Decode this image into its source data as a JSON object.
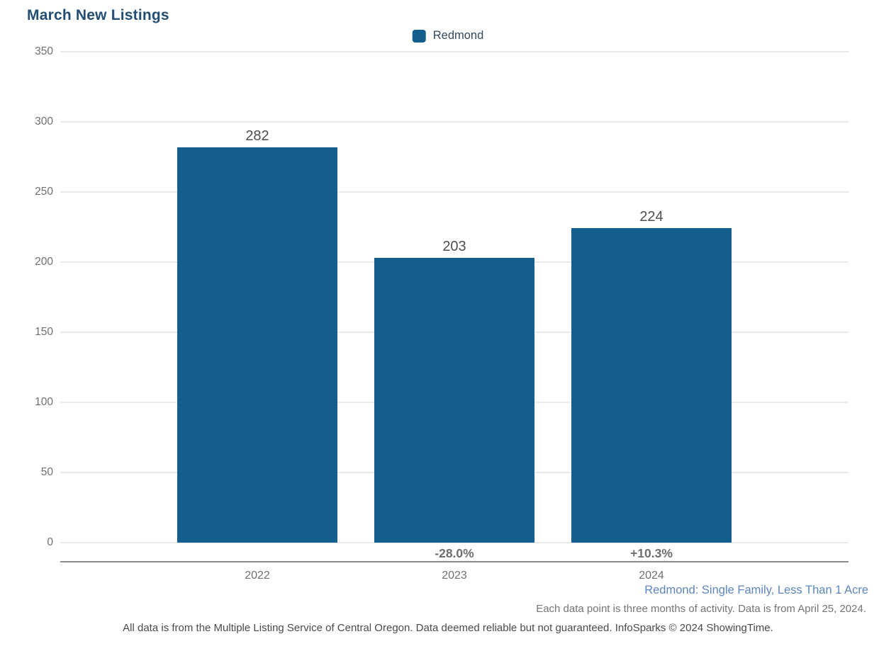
{
  "title": "March New Listings",
  "legend": {
    "label": "Redmond"
  },
  "colors": {
    "bar": "#135E8F",
    "title": "#234E74",
    "gridline": "#EAEAEA",
    "axis_line": "#8C8C8C",
    "tick_label": "#6F6F6F",
    "value_label": "#4F4F4F",
    "pct_label": "#6E6E6E",
    "segment_blue": "#5E86BD",
    "note_gray": "#757575",
    "disclaimer_gray": "#4A4A4A"
  },
  "chart_data": {
    "type": "bar",
    "title": "March New Listings",
    "categories": [
      "2022",
      "2023",
      "2024"
    ],
    "series": [
      {
        "name": "Redmond",
        "values": [
          282,
          203,
          224
        ]
      }
    ],
    "value_labels": [
      "282",
      "203",
      "224"
    ],
    "pct_change_labels": [
      "",
      "-28.0%",
      "+10.3%"
    ],
    "xlabel": "",
    "ylabel": "",
    "ylim": [
      0,
      350
    ],
    "yticks": [
      0,
      50,
      100,
      150,
      200,
      250,
      300,
      350
    ],
    "grid": true,
    "legend_position": "top-center"
  },
  "footer": {
    "segment_label": "Redmond: Single Family, Less Than 1 Acre",
    "data_note": "Each data point is three months of activity. Data is from April 25, 2024.",
    "disclaimer": "All data is from the Multiple Listing Service of Central Oregon. Data deemed reliable but not guaranteed. InfoSparks © 2024 ShowingTime."
  }
}
